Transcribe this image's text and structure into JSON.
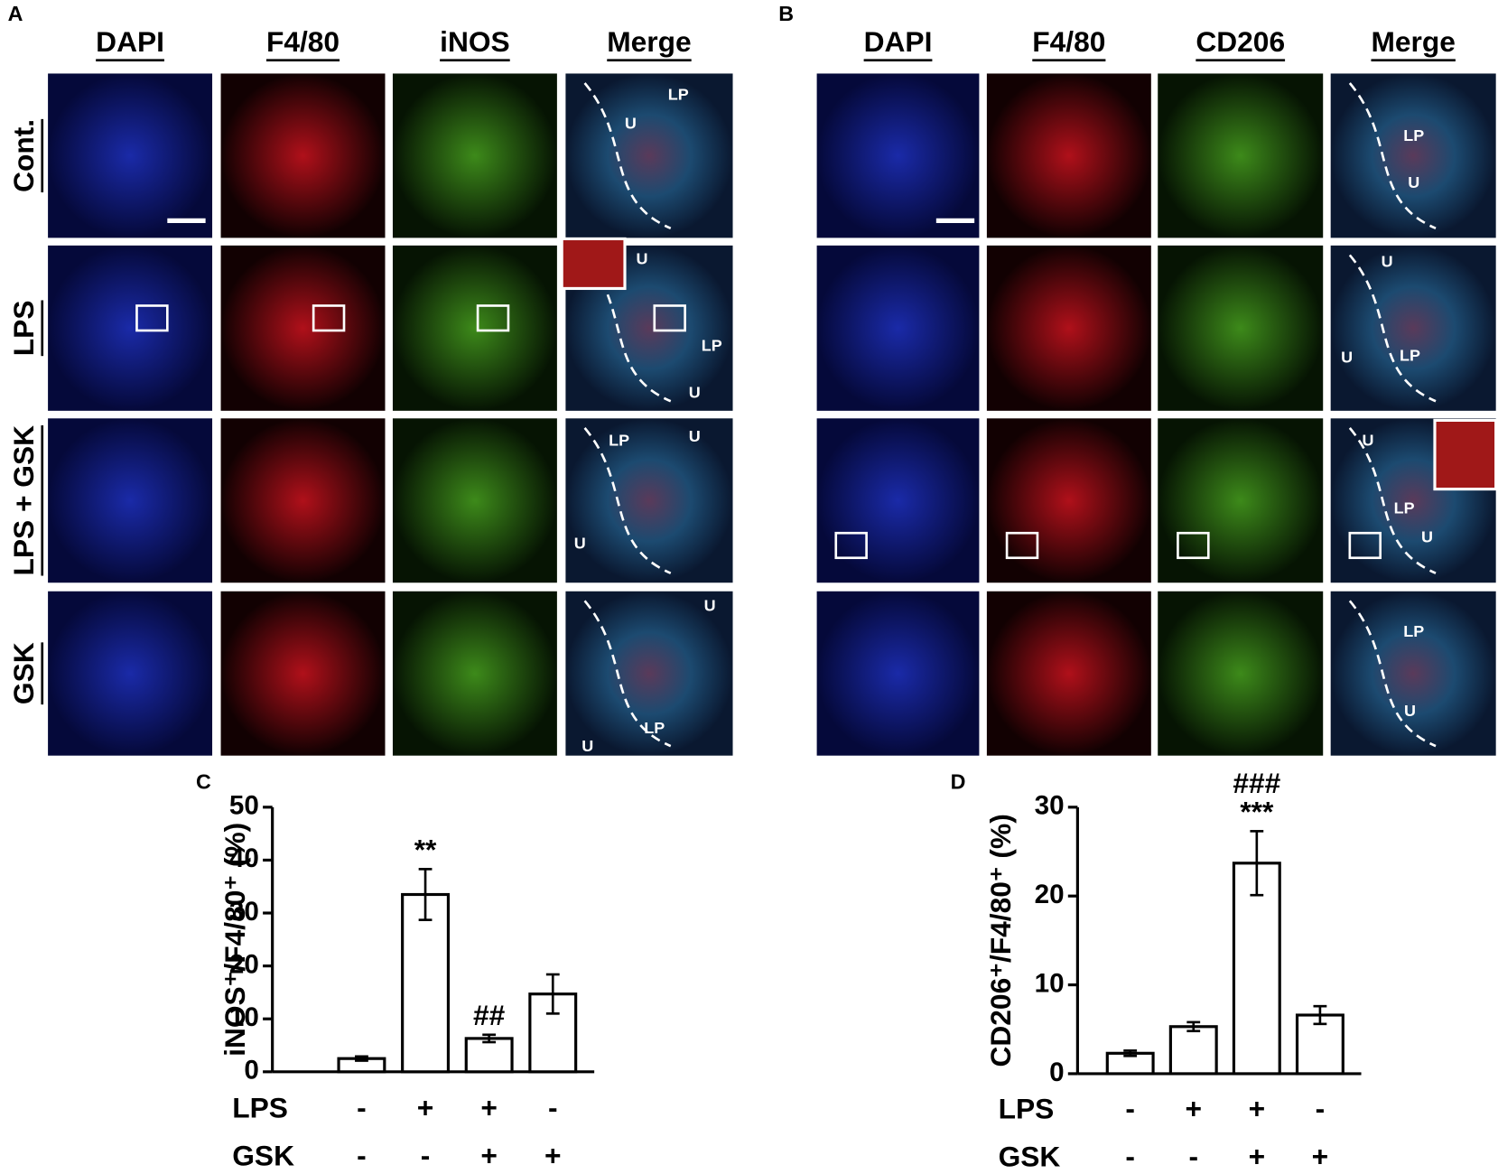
{
  "panels": [
    {
      "label": "A",
      "columns": [
        "DAPI",
        "F4/80",
        "iNOS",
        "Merge"
      ],
      "rows": [
        "Cont.",
        "LPS",
        "LPS + GSK",
        "GSK"
      ],
      "merge_annotations": [
        [
          "LP",
          "U"
        ],
        [
          "U",
          "LP",
          "U"
        ],
        [
          "LP",
          "U",
          "U"
        ],
        [
          "U",
          "LP",
          "U"
        ]
      ]
    },
    {
      "label": "B",
      "columns": [
        "DAPI",
        "F4/80",
        "CD206",
        "Merge"
      ],
      "rows": [
        "Cont.",
        "LPS",
        "LPS + GSK",
        "GSK"
      ],
      "merge_annotations": [
        [
          "LP",
          "U"
        ],
        [
          "U",
          "U",
          "LP"
        ],
        [
          "U",
          "LP",
          "U"
        ],
        [
          "LP",
          "U"
        ]
      ]
    }
  ],
  "chart_data": [
    {
      "type": "bar",
      "label": "C",
      "y_label": "iNOS⁺/F4/80⁺ (%)",
      "values": [
        2.5,
        33.5,
        6.3,
        14.7
      ],
      "errors": [
        0.4,
        4.8,
        0.7,
        3.7
      ],
      "significance_vs_control": [
        null,
        "**",
        null,
        null
      ],
      "significance_vs_lps": [
        null,
        null,
        "##",
        null
      ],
      "conditions": [
        {
          "name": "LPS",
          "levels": [
            "-",
            "+",
            "+",
            "-"
          ]
        },
        {
          "name": "GSK",
          "levels": [
            "-",
            "-",
            "+",
            "+"
          ]
        }
      ],
      "ylim": [
        0,
        50
      ],
      "yticks": [
        0,
        10,
        20,
        30,
        40,
        50
      ],
      "color": "#ffffff"
    },
    {
      "type": "bar",
      "label": "D",
      "y_label": "CD206⁺/F4/80⁺ (%)",
      "values": [
        2.3,
        5.3,
        23.7,
        6.6
      ],
      "errors": [
        0.3,
        0.5,
        3.6,
        1.0
      ],
      "significance_vs_control": [
        null,
        null,
        "***",
        null
      ],
      "significance_vs_lps": [
        null,
        null,
        "###",
        null
      ],
      "conditions": [
        {
          "name": "LPS",
          "levels": [
            "-",
            "+",
            "+",
            "-"
          ]
        },
        {
          "name": "GSK",
          "levels": [
            "-",
            "-",
            "+",
            "+"
          ]
        }
      ],
      "ylim": [
        0,
        30
      ],
      "yticks": [
        0,
        10,
        20,
        30
      ],
      "color": "#ffffff"
    }
  ]
}
